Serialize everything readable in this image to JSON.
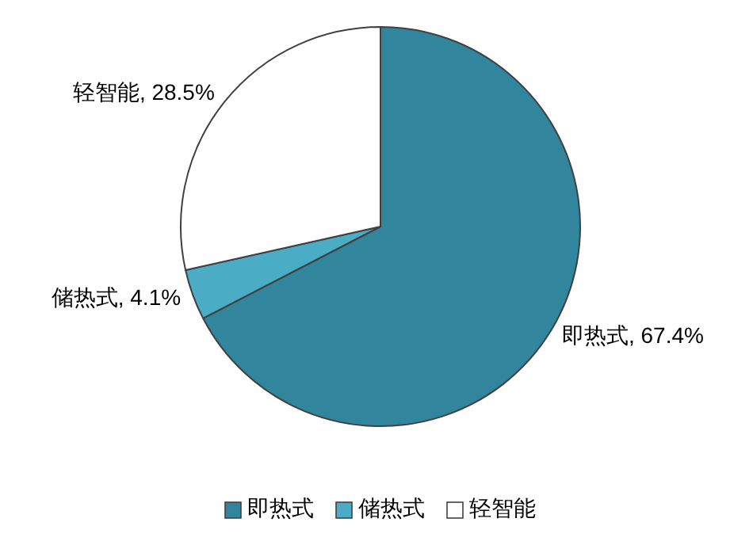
{
  "chart_data": {
    "type": "pie",
    "categories": [
      "即热式",
      "储热式",
      "轻智能"
    ],
    "values": [
      67.4,
      4.1,
      28.5
    ],
    "value_labels": [
      ", 67.4%",
      ", 4.1%",
      ", 28.5%"
    ],
    "colors": [
      "#31859c",
      "#4bacc6",
      "#ffffff"
    ],
    "legend": "bottom"
  }
}
